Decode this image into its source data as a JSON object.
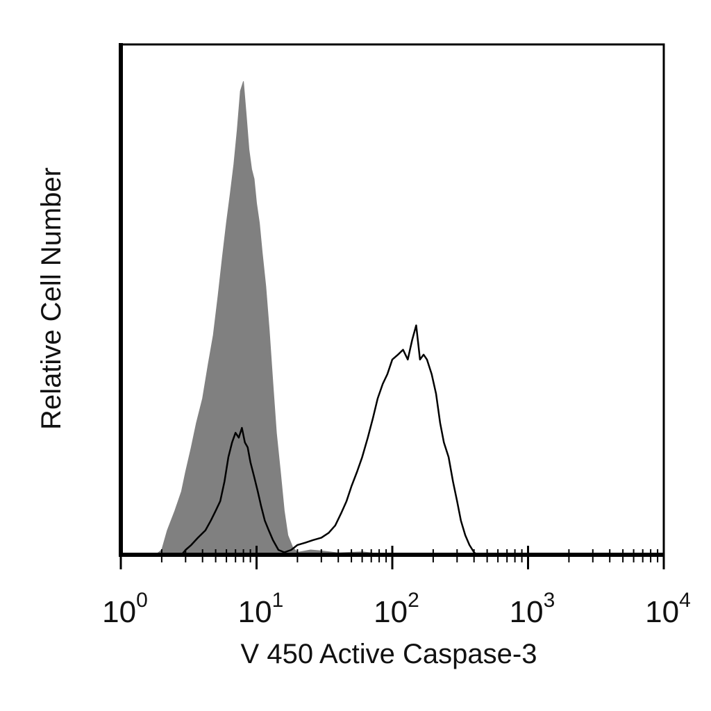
{
  "chart_data": {
    "type": "area",
    "title": "",
    "xlabel": "V 450 Active Caspase-3",
    "ylabel": "Relative Cell Number",
    "x_scale": "log",
    "xlim": [
      1,
      10000
    ],
    "ylim": [
      0,
      1
    ],
    "grid": false,
    "legend": "none",
    "x_ticks": [
      {
        "base": "10",
        "exp": "0",
        "value": 1
      },
      {
        "base": "10",
        "exp": "1",
        "value": 10
      },
      {
        "base": "10",
        "exp": "2",
        "value": 100
      },
      {
        "base": "10",
        "exp": "3",
        "value": 1000
      },
      {
        "base": "10",
        "exp": "4",
        "value": 10000
      }
    ],
    "series": [
      {
        "style": "filled",
        "color": "#808080",
        "points": [
          [
            1.8,
            0.0
          ],
          [
            2.0,
            0.01
          ],
          [
            2.2,
            0.05
          ],
          [
            2.5,
            0.09
          ],
          [
            2.8,
            0.13
          ],
          [
            3.0,
            0.17
          ],
          [
            3.3,
            0.22
          ],
          [
            3.6,
            0.27
          ],
          [
            4.0,
            0.32
          ],
          [
            4.4,
            0.39
          ],
          [
            4.8,
            0.45
          ],
          [
            5.2,
            0.53
          ],
          [
            5.6,
            0.61
          ],
          [
            6.0,
            0.68
          ],
          [
            6.4,
            0.74
          ],
          [
            6.8,
            0.8
          ],
          [
            7.2,
            0.87
          ],
          [
            7.6,
            0.95
          ],
          [
            8.0,
            0.97
          ],
          [
            8.4,
            0.9
          ],
          [
            8.8,
            0.83
          ],
          [
            9.2,
            0.79
          ],
          [
            9.6,
            0.77
          ],
          [
            10.0,
            0.72
          ],
          [
            10.5,
            0.68
          ],
          [
            11.0,
            0.62
          ],
          [
            11.7,
            0.55
          ],
          [
            12.4,
            0.46
          ],
          [
            13.2,
            0.35
          ],
          [
            14.0,
            0.25
          ],
          [
            15.0,
            0.17
          ],
          [
            16.0,
            0.09
          ],
          [
            17.0,
            0.04
          ],
          [
            18.5,
            0.015
          ],
          [
            20.0,
            0.005
          ],
          [
            25.0,
            0.01
          ],
          [
            30.0,
            0.008
          ],
          [
            40.0,
            0.004
          ],
          [
            60.0,
            0.006
          ],
          [
            75.0,
            0.003
          ],
          [
            80.0,
            0.0
          ]
        ]
      },
      {
        "style": "outline",
        "color": "#000000",
        "points": [
          [
            2.8,
            0.0
          ],
          [
            3.0,
            0.01
          ],
          [
            3.3,
            0.02
          ],
          [
            3.7,
            0.035
          ],
          [
            4.2,
            0.05
          ],
          [
            4.6,
            0.07
          ],
          [
            5.0,
            0.09
          ],
          [
            5.4,
            0.11
          ],
          [
            5.8,
            0.15
          ],
          [
            6.2,
            0.2
          ],
          [
            6.6,
            0.23
          ],
          [
            7.0,
            0.25
          ],
          [
            7.4,
            0.24
          ],
          [
            7.8,
            0.26
          ],
          [
            8.2,
            0.23
          ],
          [
            8.6,
            0.22
          ],
          [
            9.0,
            0.19
          ],
          [
            9.6,
            0.16
          ],
          [
            10.2,
            0.13
          ],
          [
            10.8,
            0.1
          ],
          [
            11.5,
            0.07
          ],
          [
            12.3,
            0.05
          ],
          [
            13.2,
            0.03
          ],
          [
            14.5,
            0.01
          ],
          [
            16.0,
            0.005
          ],
          [
            18.0,
            0.01
          ],
          [
            20.0,
            0.02
          ],
          [
            23.0,
            0.025
          ],
          [
            26.0,
            0.03
          ],
          [
            30.0,
            0.035
          ],
          [
            34.0,
            0.045
          ],
          [
            38.0,
            0.06
          ],
          [
            42.0,
            0.085
          ],
          [
            46.0,
            0.11
          ],
          [
            50.0,
            0.14
          ],
          [
            55.0,
            0.17
          ],
          [
            60.0,
            0.2
          ],
          [
            66.0,
            0.24
          ],
          [
            72.0,
            0.28
          ],
          [
            78.0,
            0.32
          ],
          [
            85.0,
            0.35
          ],
          [
            92.0,
            0.37
          ],
          [
            100.0,
            0.4
          ],
          [
            110.0,
            0.41
          ],
          [
            120.0,
            0.42
          ],
          [
            130.0,
            0.4
          ],
          [
            140.0,
            0.44
          ],
          [
            150.0,
            0.47
          ],
          [
            160.0,
            0.4
          ],
          [
            170.0,
            0.41
          ],
          [
            180.0,
            0.4
          ],
          [
            195.0,
            0.37
          ],
          [
            210.0,
            0.33
          ],
          [
            225.0,
            0.27
          ],
          [
            240.0,
            0.23
          ],
          [
            260.0,
            0.2
          ],
          [
            280.0,
            0.15
          ],
          [
            300.0,
            0.11
          ],
          [
            320.0,
            0.07
          ],
          [
            345.0,
            0.04
          ],
          [
            370.0,
            0.02
          ],
          [
            400.0,
            0.005
          ],
          [
            420.0,
            0.0
          ]
        ]
      }
    ]
  }
}
